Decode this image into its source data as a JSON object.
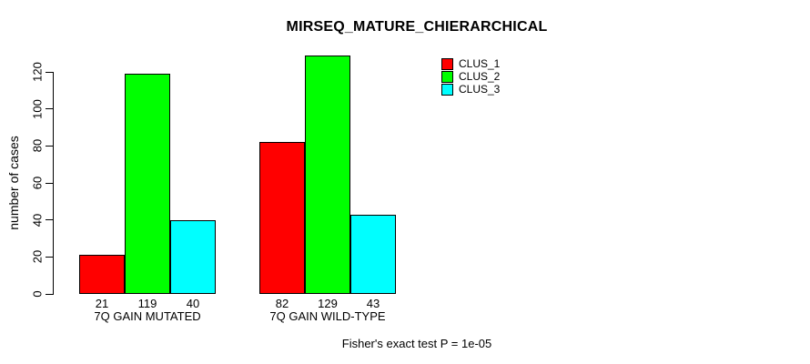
{
  "title": "MIRSEQ_MATURE_CHIERARCHICAL",
  "footer": "Fisher's exact test P = 1e-05",
  "colors": {
    "clus_1": "#FF0000",
    "clus_2": "#00FF00",
    "clus_3": "#00FFFF",
    "axis": "#000000",
    "background": "#FFFFFF"
  },
  "chart_data": {
    "type": "bar",
    "grouped": true,
    "title": "MIRSEQ_MATURE_CHIERARCHICAL",
    "categories": [
      "7Q GAIN MUTATED",
      "7Q GAIN WILD-TYPE"
    ],
    "series": [
      {
        "name": "CLUS_1",
        "color": "#FF0000",
        "values": [
          21,
          82
        ]
      },
      {
        "name": "CLUS_2",
        "color": "#00FF00",
        "values": [
          119,
          129
        ]
      },
      {
        "name": "CLUS_3",
        "color": "#00FFFF",
        "values": [
          40,
          43
        ]
      }
    ],
    "bar_value_labels": [
      [
        21,
        119,
        40
      ],
      [
        82,
        129,
        43
      ]
    ],
    "xlabel": "",
    "ylabel": "number of cases",
    "ylim": [
      0,
      120
    ],
    "yticks": [
      0,
      20,
      40,
      60,
      80,
      100,
      120
    ],
    "grid": false,
    "legend_position": "top-right",
    "annotation": "Fisher's exact test P = 1e-05"
  }
}
